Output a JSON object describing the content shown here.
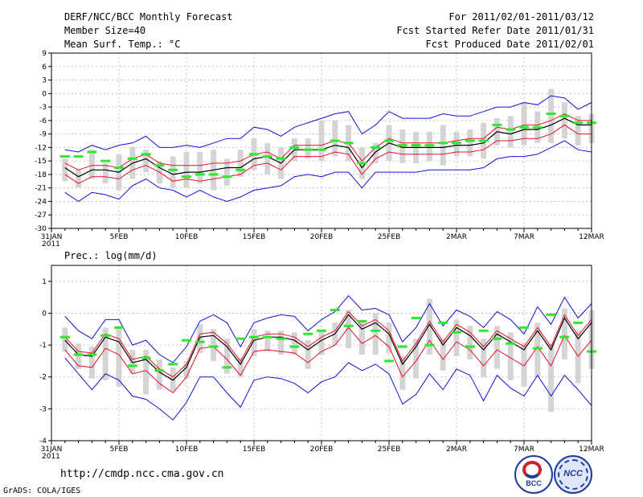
{
  "header": {
    "title": "DERF/NCC/BCC Monthly Forecast",
    "member_size": "Member Size=40",
    "variable": "Mean Surf. Temp.: °C",
    "period": "For 2011/02/01-2011/03/12",
    "started": "Fcst Started Refer Date 2011/01/31",
    "produced": "Fcst Produced Date 2011/02/01"
  },
  "footer": {
    "url": "http://cmdp.ncc.cma.gov.cn",
    "grads": "GrADS: COLA/IGES",
    "logo_bcc": "BCC",
    "logo_ncc": "NCC"
  },
  "colors": {
    "mean": "#000000",
    "spread": "#e8102a",
    "envelope": "#1010d8",
    "box": "#d4d4d4",
    "obs": "#2ee82e",
    "grid": "#b4b4b4"
  },
  "chart_data": [
    {
      "type": "line",
      "title": "Mean Surf. Temp.: °C",
      "x_labels": [
        "31JAN\n2011",
        "5FEB",
        "10FEB",
        "15FEB",
        "20FEB",
        "25FEB",
        "2MAR",
        "7MAR",
        "12MAR"
      ],
      "x_label_days": [
        0,
        5,
        10,
        15,
        20,
        25,
        30,
        35,
        40
      ],
      "y_ticks": [
        9,
        6,
        3,
        0,
        -3,
        -6,
        -9,
        -12,
        -15,
        -18,
        -21,
        -24,
        -27,
        -30
      ],
      "ylim": [
        -30,
        9
      ],
      "days": [
        1,
        2,
        3,
        4,
        5,
        6,
        7,
        8,
        9,
        10,
        11,
        12,
        13,
        14,
        15,
        16,
        17,
        18,
        19,
        20,
        21,
        22,
        23,
        24,
        25,
        26,
        27,
        28,
        29,
        30,
        31,
        32,
        33,
        34,
        35,
        36,
        37,
        38,
        39,
        40
      ],
      "series": [
        {
          "name": "ensemble mean",
          "values": [
            -16.5,
            -18.5,
            -17,
            -17,
            -17.5,
            -15.5,
            -14.5,
            -16.5,
            -18,
            -17.5,
            -17.5,
            -17,
            -16.5,
            -16.5,
            -14.5,
            -14,
            -15.5,
            -12.5,
            -12.5,
            -12.5,
            -11.5,
            -12,
            -16.5,
            -13,
            -11,
            -12,
            -12,
            -12,
            -12,
            -11.5,
            -11.5,
            -11,
            -8.5,
            -9,
            -8,
            -8,
            -7,
            -5.5,
            -7,
            -7
          ]
        },
        {
          "name": "mean + std",
          "values": [
            -15.5,
            -17,
            -16,
            -16,
            -16.5,
            -14.5,
            -13.5,
            -15.5,
            -16,
            -16,
            -16,
            -15.5,
            -15.5,
            -15,
            -13.5,
            -13,
            -14.5,
            -11.5,
            -11.5,
            -11.5,
            -10.5,
            -11,
            -15,
            -12,
            -10,
            -11,
            -11,
            -11,
            -11,
            -10.5,
            -10,
            -10,
            -7.5,
            -8,
            -7,
            -7,
            -6,
            -4.5,
            -6,
            -6
          ]
        },
        {
          "name": "mean - std",
          "values": [
            -18,
            -20,
            -18.5,
            -18.5,
            -19,
            -17,
            -16,
            -17.5,
            -19.5,
            -19,
            -19.5,
            -19,
            -18.5,
            -18,
            -16,
            -15.5,
            -17,
            -14,
            -14,
            -14,
            -13,
            -13.5,
            -18,
            -14.5,
            -13,
            -13.5,
            -13.5,
            -13.5,
            -13.5,
            -13,
            -13,
            -12.5,
            -10.5,
            -10.5,
            -10,
            -10,
            -9,
            -7,
            -9,
            -9
          ]
        },
        {
          "name": "ensemble max",
          "values": [
            -12.5,
            -13,
            -11.5,
            -12.5,
            -11.5,
            -11,
            -9.5,
            -12,
            -12,
            -11.5,
            -12,
            -11,
            -10,
            -10,
            -7.5,
            -8,
            -9.5,
            -7.5,
            -6.5,
            -5.5,
            -4.5,
            -4,
            -9,
            -7,
            -4,
            -5.5,
            -5.5,
            -5.5,
            -4.5,
            -5,
            -5,
            -4,
            -3,
            -3,
            -2,
            -2.5,
            -0.5,
            -1,
            -3.5,
            -2
          ]
        },
        {
          "name": "ensemble min",
          "values": [
            -22,
            -24,
            -22,
            -22.5,
            -23.5,
            -20.5,
            -19,
            -21,
            -21.5,
            -23,
            -21.5,
            -23,
            -24,
            -23,
            -21.5,
            -21,
            -20.5,
            -18.5,
            -18,
            -18.5,
            -17.5,
            -17.5,
            -21,
            -17.5,
            -17.5,
            -17.5,
            -17.5,
            -17,
            -17,
            -17,
            -17,
            -16.5,
            -14.5,
            -14,
            -14,
            -13.5,
            -12,
            -10.5,
            -12.5,
            -13
          ]
        }
      ],
      "box_top": [
        -14.5,
        -17,
        -12.5,
        -15.5,
        -13.5,
        -12,
        -12.5,
        -15,
        -14,
        -13,
        -13,
        -12.5,
        -14.5,
        -12.5,
        -10,
        -11,
        -12,
        -10,
        -10,
        -6,
        -6,
        -7,
        -12,
        -11,
        -7,
        -8,
        -8.5,
        -8.5,
        -7,
        -8.5,
        -8,
        -6.5,
        -5.5,
        -5,
        -2,
        -4,
        1,
        -2,
        -5,
        -4.5
      ],
      "box_bottom": [
        -19.5,
        -21,
        -19,
        -20,
        -21.5,
        -19,
        -17.5,
        -20,
        -21,
        -21,
        -20,
        -21.5,
        -20.5,
        -18.5,
        -17,
        -18,
        -19,
        -15,
        -14.5,
        -15,
        -14,
        -15,
        -19,
        -15.5,
        -15,
        -15.5,
        -15.5,
        -15,
        -16,
        -14,
        -14,
        -14.5,
        -11.5,
        -12,
        -11.5,
        -11,
        -11,
        -10,
        -11.5,
        -11
      ],
      "observed": [
        -14,
        -14,
        -13,
        -15,
        -16.5,
        -14.5,
        -13.5,
        -16,
        -17,
        -18.5,
        -18,
        -18,
        -18.5,
        -17,
        -13.5,
        -14,
        -14.5,
        -12,
        -12.5,
        -12.5,
        -10.5,
        -11,
        -15.5,
        -12,
        -10.5,
        -11.5,
        -11.5,
        -11.5,
        -11,
        -11,
        -10.5,
        -10.5,
        -7,
        -8,
        -7.5,
        -7.5,
        -4.5,
        -5,
        -6.5,
        -6.5
      ]
    },
    {
      "type": "line",
      "title": "Prec.: log(mm/d)",
      "x_labels": [
        "31JAN\n2011",
        "5FEB",
        "10FEB",
        "15FEB",
        "20FEB",
        "25FEB",
        "2MAR",
        "7MAR",
        "12MAR"
      ],
      "x_label_days": [
        0,
        5,
        10,
        15,
        20,
        25,
        30,
        35,
        40
      ],
      "y_ticks": [
        1,
        0,
        -1,
        -2,
        -3,
        -4
      ],
      "ylim": [
        -4,
        1.5
      ],
      "days": [
        1,
        2,
        3,
        4,
        5,
        6,
        7,
        8,
        9,
        10,
        11,
        12,
        13,
        14,
        15,
        16,
        17,
        18,
        19,
        20,
        21,
        22,
        23,
        24,
        25,
        26,
        27,
        28,
        29,
        30,
        31,
        32,
        33,
        34,
        35,
        36,
        37,
        38,
        39,
        40
      ],
      "series": [
        {
          "name": "ensemble mean",
          "values": [
            -0.85,
            -1.3,
            -1.35,
            -0.75,
            -0.9,
            -1.55,
            -1.45,
            -1.85,
            -2.1,
            -1.7,
            -0.75,
            -0.7,
            -1.05,
            -1.6,
            -0.85,
            -0.75,
            -0.75,
            -0.85,
            -1.15,
            -0.85,
            -0.65,
            -0.05,
            -0.5,
            -0.3,
            -0.65,
            -1.6,
            -1.05,
            -0.35,
            -1.0,
            -0.45,
            -0.7,
            -1.15,
            -0.65,
            -0.9,
            -1.15,
            -0.55,
            -1.15,
            -0.15,
            -0.8,
            -0.3
          ]
        },
        {
          "name": "mean + std",
          "values": [
            -0.75,
            -1.2,
            -1.25,
            -0.65,
            -0.8,
            -1.45,
            -1.35,
            -1.75,
            -2.0,
            -1.6,
            -0.65,
            -0.6,
            -0.95,
            -1.5,
            -0.75,
            -0.65,
            -0.65,
            -0.75,
            -1.05,
            -0.75,
            -0.55,
            0.05,
            -0.4,
            -0.2,
            -0.55,
            -1.5,
            -0.95,
            -0.25,
            -0.9,
            -0.35,
            -0.6,
            -1.05,
            -0.55,
            -0.8,
            -1.05,
            -0.45,
            -1.05,
            -0.05,
            -0.7,
            -0.2
          ]
        },
        {
          "name": "mean - std",
          "values": [
            -1.15,
            -1.65,
            -1.7,
            -1.1,
            -1.3,
            -1.9,
            -1.8,
            -2.2,
            -2.5,
            -2.0,
            -1.1,
            -1.05,
            -1.45,
            -1.95,
            -1.2,
            -1.15,
            -1.2,
            -1.25,
            -1.55,
            -1.2,
            -1.0,
            -0.45,
            -0.95,
            -0.7,
            -1.05,
            -2.0,
            -1.5,
            -0.85,
            -1.45,
            -0.9,
            -1.15,
            -1.65,
            -1.15,
            -1.4,
            -1.65,
            -1.05,
            -1.65,
            -0.7,
            -1.35,
            -0.85
          ]
        },
        {
          "name": "ensemble max",
          "values": [
            -0.1,
            -0.55,
            -0.8,
            -0.2,
            -0.2,
            -1.0,
            -0.85,
            -1.3,
            -1.55,
            -1.05,
            -0.25,
            -0.05,
            -0.3,
            -1.05,
            -0.3,
            -0.15,
            -0.05,
            -0.1,
            -0.55,
            -0.2,
            0.05,
            0.55,
            0.1,
            0.15,
            -0.05,
            -0.9,
            -0.45,
            0.3,
            -0.4,
            0.1,
            -0.1,
            -0.45,
            0.05,
            -0.2,
            -0.65,
            0.2,
            -0.35,
            0.5,
            -0.15,
            0.3
          ]
        },
        {
          "name": "ensemble min",
          "values": [
            -1.4,
            -1.9,
            -2.4,
            -1.9,
            -2.1,
            -2.6,
            -2.7,
            -3.0,
            -3.35,
            -2.8,
            -2.0,
            -2.0,
            -2.5,
            -2.95,
            -2.1,
            -2.0,
            -2.05,
            -2.2,
            -2.5,
            -2.15,
            -2.0,
            -1.55,
            -1.8,
            -1.6,
            -1.9,
            -2.85,
            -2.55,
            -1.9,
            -2.4,
            -1.75,
            -1.95,
            -2.75,
            -1.95,
            -2.35,
            -2.6,
            -1.95,
            -2.6,
            -1.95,
            -2.4,
            -2.9
          ]
        },
        {
          "name": "ensemble min 2",
          "values": []
        }
      ],
      "box_top": [
        -0.45,
        -0.95,
        -1.05,
        -0.45,
        -0.4,
        -1.15,
        -1.15,
        -1.45,
        -1.7,
        -1.5,
        -0.35,
        -0.5,
        -0.8,
        -1.4,
        -0.5,
        -0.55,
        -0.55,
        -0.6,
        -0.85,
        -0.55,
        -0.3,
        0.1,
        -0.25,
        0.0,
        -0.3,
        -1.35,
        -0.8,
        0.45,
        -0.8,
        -0.2,
        -0.4,
        -0.8,
        -0.4,
        -0.6,
        -0.95,
        -0.3,
        -0.95,
        0.15,
        -0.55,
        0.1
      ],
      "box_bottom": [
        -1.2,
        -1.75,
        -2.05,
        -2.1,
        -2.3,
        -1.9,
        -2.55,
        -2.4,
        -2.45,
        -2.05,
        -1.25,
        -1.5,
        -1.9,
        -2.0,
        -1.35,
        -1.2,
        -1.3,
        -1.3,
        -1.75,
        -1.3,
        -1.0,
        -1.1,
        -1.3,
        -1.3,
        -1.25,
        -2.4,
        -2.05,
        -1.3,
        -1.8,
        -1.35,
        -1.45,
        -2.0,
        -1.75,
        -2.1,
        -2.3,
        -2.0,
        -3.1,
        -1.45,
        -2.2,
        -1.75
      ],
      "observed": [
        -0.75,
        -1.3,
        -1.3,
        -0.7,
        -0.45,
        -1.65,
        -1.4,
        -1.8,
        -1.6,
        -0.85,
        -0.9,
        -1.05,
        -1.7,
        -0.8,
        -0.75,
        -0.75,
        -0.8,
        -1.05,
        -0.65,
        -0.55,
        0.1,
        -0.4,
        -0.25,
        -0.55,
        -1.5,
        -1.05,
        -0.15,
        -1.0,
        -0.3,
        -0.6,
        -1.05,
        -0.55,
        -0.8,
        -0.95,
        -0.45,
        -1.1,
        -0.05,
        -0.75,
        -0.3,
        -1.2
      ]
    }
  ]
}
